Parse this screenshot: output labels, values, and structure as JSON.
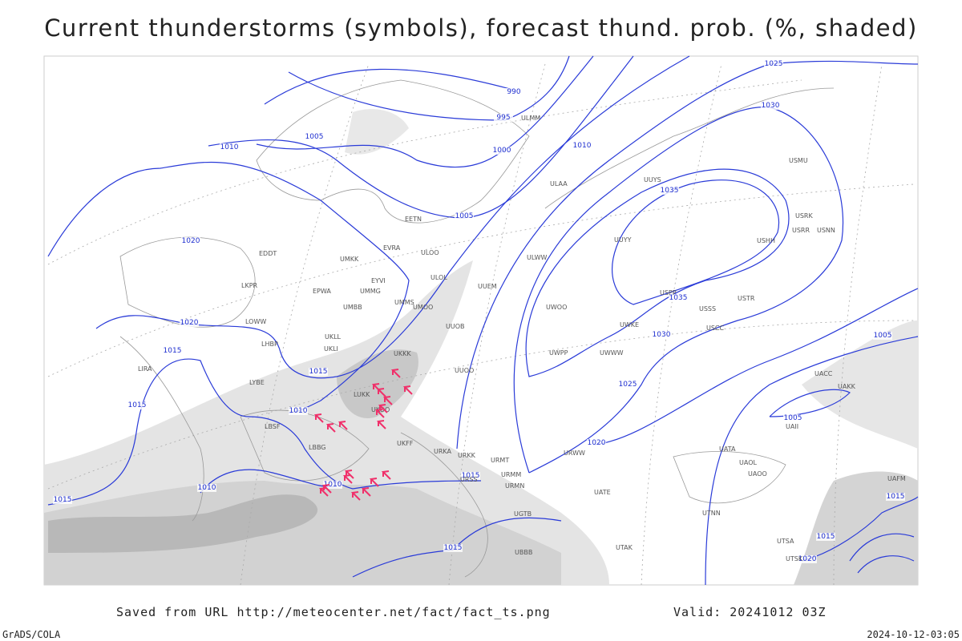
{
  "title": "Current thunderstorms (symbols), forecast thund. prob. (%, shaded)",
  "isobar_labels": [
    "990",
    "995",
    "1000",
    "1005",
    "1005",
    "1010",
    "1010",
    "1020",
    "1020",
    "1015",
    "1015",
    "1015",
    "1010",
    "1010",
    "1010",
    "1015",
    "1015",
    "1015",
    "1020",
    "1025",
    "1030",
    "1035",
    "1035",
    "1030",
    "1025",
    "1005",
    "1005",
    "1015",
    "1020",
    "1015"
  ],
  "stations": [
    "ULMM",
    "ULAA",
    "ULOL",
    "ULOO",
    "EVRA",
    "EETN",
    "UMKK",
    "EYVI",
    "UMMG",
    "EPWA",
    "UMBB",
    "UMMS",
    "UMOO",
    "UUEM",
    "EDDT",
    "LKPR",
    "LOWW",
    "LHBP",
    "LIRA",
    "LYBE",
    "UKLL",
    "UKLI",
    "UKKK",
    "LUKK",
    "UKOO",
    "LBSF",
    "LBBG",
    "UKFF",
    "URKA",
    "URKK",
    "URSS",
    "URMT",
    "URMM",
    "URMN",
    "UGTB",
    "UBBB",
    "UTAK",
    "UATE",
    "URWW",
    "UWOO",
    "UWPP",
    "UWWW",
    "UUOO",
    "UUOB",
    "UWKE",
    "UUYY",
    "ULWW",
    "UUYS",
    "USRR",
    "USNN",
    "USRK",
    "USHH",
    "USMU",
    "USPP",
    "USSS",
    "USCC",
    "USTR",
    "UACC",
    "UAKK",
    "UAII",
    "UATA",
    "UAOL",
    "UAOO",
    "UTNN",
    "UTSA",
    "UTSK",
    "UAFM"
  ],
  "footer": {
    "source": "Saved from URL http://meteocenter.net/fact/fact_ts.png",
    "valid": "Valid: 20241012 03Z",
    "credit": "GrADS/COLA",
    "timestamp": "2024-10-12-03:05"
  }
}
